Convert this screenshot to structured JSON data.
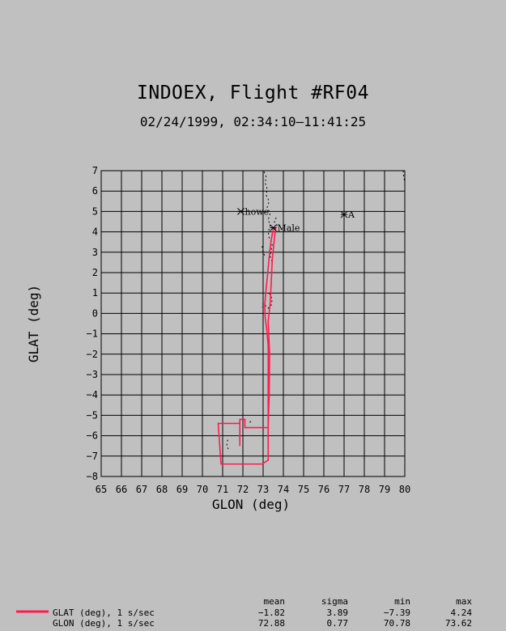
{
  "chart_data": {
    "type": "line",
    "title": "INDOEX, Flight #RF04",
    "subtitle": "02/24/1999, 02:34:10–11:41:25",
    "xlabel": "GLON (deg)",
    "ylabel": "GLAT (deg)",
    "xlim": [
      65,
      80
    ],
    "ylim": [
      -8,
      7
    ],
    "x_ticks": [
      "65",
      "66",
      "67",
      "68",
      "69",
      "70",
      "71",
      "72",
      "73",
      "74",
      "75",
      "76",
      "77",
      "78",
      "79",
      "80"
    ],
    "y_ticks": [
      "7",
      "6",
      "5",
      "4",
      "3",
      "2",
      "1",
      "0",
      "−1",
      "−2",
      "−3",
      "−4",
      "−5",
      "−6",
      "−7",
      "−8"
    ],
    "grid": true,
    "track_color": "#ff1a4d",
    "series": [
      {
        "name": "GLAT (deg), 1 s/sec",
        "points": [
          [
            73.52,
            4.24
          ],
          [
            73.4,
            3.6
          ],
          [
            73.32,
            3.0
          ],
          [
            73.25,
            2.2
          ],
          [
            73.18,
            1.5
          ],
          [
            73.12,
            0.9
          ],
          [
            73.08,
            0.4
          ],
          [
            73.1,
            -0.2
          ],
          [
            73.18,
            -0.8
          ],
          [
            73.25,
            -1.6
          ],
          [
            73.25,
            -3.0
          ],
          [
            73.25,
            -4.5
          ],
          [
            73.25,
            -5.6
          ],
          [
            72.1,
            -5.6
          ],
          [
            72.1,
            -5.2
          ],
          [
            71.85,
            -5.2
          ],
          [
            71.85,
            -6.5
          ],
          [
            71.85,
            -5.4
          ],
          [
            70.78,
            -5.4
          ],
          [
            70.92,
            -7.39
          ],
          [
            72.95,
            -7.39
          ],
          [
            73.25,
            -7.2
          ],
          [
            73.25,
            -5.6
          ],
          [
            73.3,
            -4.0
          ],
          [
            73.32,
            -2.0
          ],
          [
            73.25,
            -0.4
          ],
          [
            73.35,
            0.5
          ],
          [
            73.4,
            1.5
          ],
          [
            73.45,
            2.6
          ],
          [
            73.55,
            3.6
          ],
          [
            73.62,
            4.2
          ],
          [
            73.48,
            4.1
          ]
        ]
      }
    ],
    "markers": [
      {
        "label": "howe",
        "x": 71.9,
        "y": 5.0
      },
      {
        "label": "Male",
        "x": 73.5,
        "y": 4.2
      },
      {
        "label": "A",
        "x": 77.0,
        "y": 4.85
      }
    ],
    "coastline": [
      [
        [
          73.05,
          6.95
        ],
        [
          73.15,
          6.7
        ],
        [
          73.1,
          6.4
        ],
        [
          73.2,
          6.1
        ],
        [
          73.15,
          5.8
        ],
        [
          73.3,
          5.5
        ],
        [
          73.2,
          5.2
        ],
        [
          73.35,
          4.9
        ],
        [
          73.25,
          4.6
        ],
        [
          73.35,
          4.3
        ],
        [
          73.25,
          4.0
        ],
        [
          73.3,
          3.7
        ],
        [
          73.45,
          3.4
        ],
        [
          73.4,
          3.1
        ],
        [
          73.35,
          2.8
        ],
        [
          73.45,
          2.5
        ]
      ],
      [
        [
          72.95,
          3.3
        ],
        [
          73.0,
          3.0
        ],
        [
          73.1,
          2.8
        ]
      ],
      [
        [
          73.3,
          1.0
        ],
        [
          73.45,
          0.7
        ],
        [
          73.4,
          0.4
        ],
        [
          73.25,
          0.25
        ],
        [
          73.0,
          0.5
        ],
        [
          72.95,
          0.3
        ]
      ],
      [
        [
          79.92,
          7.0
        ],
        [
          79.95,
          6.7
        ],
        [
          80.0,
          6.4
        ]
      ],
      [
        [
          71.25,
          -6.2
        ],
        [
          71.2,
          -6.5
        ],
        [
          71.3,
          -6.7
        ]
      ],
      [
        [
          72.4,
          -5.3
        ],
        [
          72.25,
          -5.4
        ]
      ],
      [
        [
          73.65,
          4.7
        ],
        [
          73.55,
          4.5
        ],
        [
          73.7,
          4.3
        ]
      ]
    ],
    "stats": {
      "headers": [
        "mean",
        "sigma",
        "min",
        "max"
      ],
      "rows": [
        {
          "label": "GLAT (deg), 1 s/sec",
          "mean": "−1.82",
          "sigma": "3.89",
          "min": "−7.39",
          "max": "4.24"
        },
        {
          "label": "GLON (deg), 1 s/sec",
          "mean": "72.88",
          "sigma": "0.77",
          "min": "70.78",
          "max": "73.62"
        }
      ]
    }
  }
}
